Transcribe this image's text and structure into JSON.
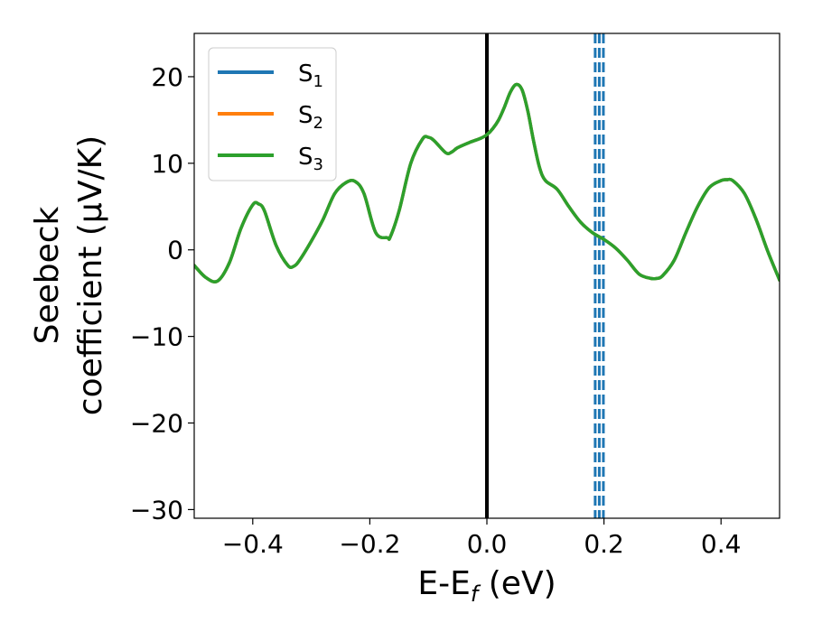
{
  "chart_data": {
    "type": "line",
    "xlabel": "E-E",
    "xlabel_sub": "f",
    "xlabel_unit": " (eV)",
    "ylabel_line1": "Seebeck",
    "ylabel_line2": "coefficient  (μV/K)",
    "xlim": [
      -0.5,
      0.5
    ],
    "ylim": [
      -31,
      25
    ],
    "xticks": [
      -0.4,
      -0.2,
      0.0,
      0.2,
      0.4
    ],
    "xtick_labels": [
      "−0.4",
      "−0.2",
      "0.0",
      "0.2",
      "0.4"
    ],
    "yticks": [
      -30,
      -20,
      -10,
      0,
      10,
      20
    ],
    "ytick_labels": [
      "−30",
      "−20",
      "−10",
      "0",
      "10",
      "20"
    ],
    "grid": false,
    "legend_position": "top-left",
    "vertical_lines": [
      {
        "x": 0.0,
        "style": "solid",
        "color": "#000000"
      },
      {
        "x": 0.185,
        "style": "dashed",
        "color": "#1f77b4"
      },
      {
        "x": 0.192,
        "style": "dashed",
        "color": "#1f77b4"
      },
      {
        "x": 0.199,
        "style": "dashed",
        "color": "#1f77b4"
      }
    ],
    "x": [
      -0.5,
      -0.48,
      -0.46,
      -0.44,
      -0.42,
      -0.4,
      -0.39,
      -0.38,
      -0.36,
      -0.34,
      -0.33,
      -0.32,
      -0.3,
      -0.28,
      -0.26,
      -0.24,
      -0.225,
      -0.21,
      -0.19,
      -0.17,
      -0.165,
      -0.15,
      -0.13,
      -0.11,
      -0.1,
      -0.09,
      -0.07,
      -0.06,
      -0.05,
      -0.03,
      -0.01,
      0.0,
      0.01,
      0.02,
      0.03,
      0.04,
      0.05,
      0.06,
      0.07,
      0.08,
      0.09,
      0.1,
      0.12,
      0.14,
      0.16,
      0.18,
      0.2,
      0.22,
      0.24,
      0.26,
      0.28,
      0.29,
      0.3,
      0.32,
      0.34,
      0.36,
      0.38,
      0.4,
      0.41,
      0.42,
      0.44,
      0.46,
      0.48,
      0.5
    ],
    "series": [
      {
        "name": "S",
        "sub": "1",
        "color": "#1f77b4",
        "visible_curve": false,
        "values": [
          -1.8,
          -3.2,
          -3.6,
          -1.5,
          2.5,
          5.2,
          5.3,
          4.5,
          0.5,
          -1.8,
          -1.9,
          -1.2,
          1.0,
          3.5,
          6.5,
          7.8,
          7.9,
          6.5,
          2.0,
          1.4,
          1.5,
          4.5,
          10.0,
          12.8,
          13.0,
          12.6,
          11.2,
          11.3,
          11.8,
          12.4,
          12.9,
          13.3,
          14.0,
          15.0,
          16.5,
          18.2,
          19.1,
          18.5,
          16.0,
          12.5,
          9.5,
          8.0,
          7.0,
          5.0,
          3.2,
          2.0,
          1.2,
          0.2,
          -1.2,
          -2.8,
          -3.3,
          -3.3,
          -3.0,
          -1.2,
          2.0,
          5.0,
          7.2,
          8.0,
          8.1,
          8.0,
          6.5,
          3.5,
          -0.2,
          -3.5
        ]
      },
      {
        "name": "S",
        "sub": "2",
        "color": "#ff7f0e",
        "visible_curve": false,
        "values": [
          -1.8,
          -3.2,
          -3.6,
          -1.5,
          2.5,
          5.2,
          5.3,
          4.5,
          0.5,
          -1.8,
          -1.9,
          -1.2,
          1.0,
          3.5,
          6.5,
          7.8,
          7.9,
          6.5,
          2.0,
          1.4,
          1.5,
          4.5,
          10.0,
          12.8,
          13.0,
          12.6,
          11.2,
          11.3,
          11.8,
          12.4,
          12.9,
          13.3,
          14.0,
          15.0,
          16.5,
          18.2,
          19.1,
          18.5,
          16.0,
          12.5,
          9.5,
          8.0,
          7.0,
          5.0,
          3.2,
          2.0,
          1.2,
          0.2,
          -1.2,
          -2.8,
          -3.3,
          -3.3,
          -3.0,
          -1.2,
          2.0,
          5.0,
          7.2,
          8.0,
          8.1,
          8.0,
          6.5,
          3.5,
          -0.2,
          -3.5
        ]
      },
      {
        "name": "S",
        "sub": "3",
        "color": "#2ca02c",
        "visible_curve": true,
        "values": [
          -1.8,
          -3.2,
          -3.6,
          -1.5,
          2.5,
          5.2,
          5.3,
          4.5,
          0.5,
          -1.8,
          -1.9,
          -1.2,
          1.0,
          3.5,
          6.5,
          7.8,
          7.9,
          6.5,
          2.0,
          1.4,
          1.5,
          4.5,
          10.0,
          12.8,
          13.0,
          12.6,
          11.2,
          11.3,
          11.8,
          12.4,
          12.9,
          13.3,
          14.0,
          15.0,
          16.5,
          18.2,
          19.1,
          18.5,
          16.0,
          12.5,
          9.5,
          8.0,
          7.0,
          5.0,
          3.2,
          2.0,
          1.2,
          0.2,
          -1.2,
          -2.8,
          -3.3,
          -3.3,
          -3.0,
          -1.2,
          2.0,
          5.0,
          7.2,
          8.0,
          8.1,
          8.0,
          6.5,
          3.5,
          -0.2,
          -3.5
        ]
      }
    ]
  }
}
